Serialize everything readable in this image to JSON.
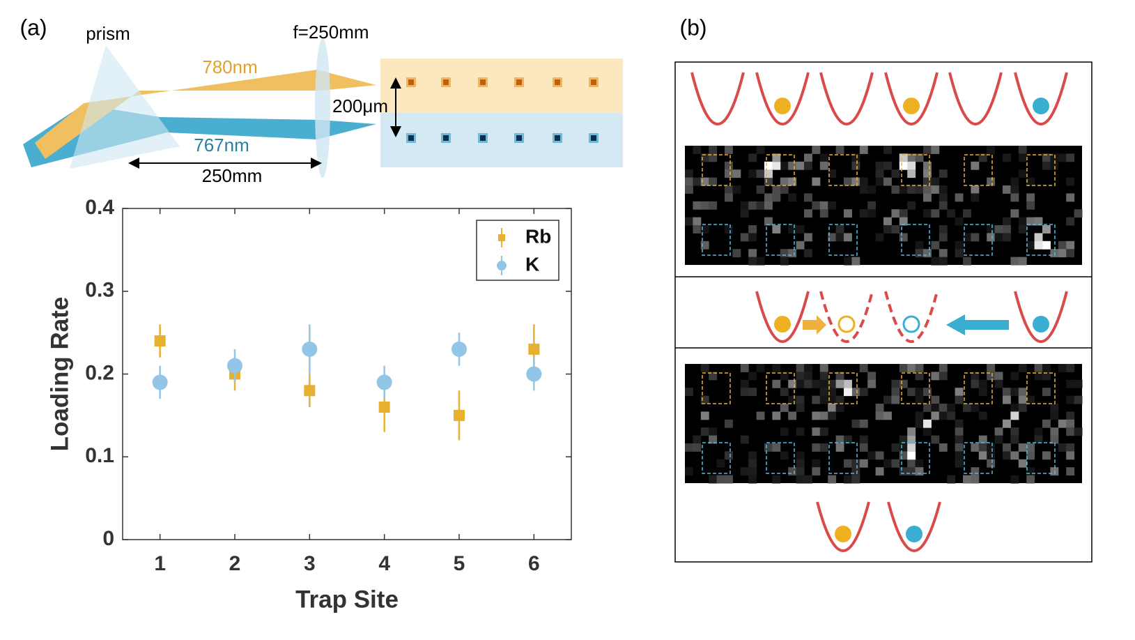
{
  "panel_labels": [
    "(a)",
    "(b)"
  ],
  "diagram": {
    "prism": "prism",
    "lens": "f=250mm",
    "beam_rb": "780nm",
    "beam_k": "767nm",
    "spacing": "200μm",
    "distance": "250mm"
  },
  "chart_data": {
    "type": "scatter",
    "x": [
      1,
      2,
      3,
      4,
      5,
      6
    ],
    "xlabel": "Trap Site",
    "ylabel": "Loading Rate",
    "xlim": [
      0.5,
      6.5
    ],
    "xticks": [
      1,
      2,
      3,
      4,
      5,
      6
    ],
    "ylim": [
      0,
      0.4
    ],
    "yticks": [
      0,
      0.1,
      0.2,
      0.3,
      0.4
    ],
    "legend": "upper right",
    "series": [
      {
        "name": "Rb",
        "color": "#e8b030",
        "marker": "square",
        "values": [
          0.24,
          0.2,
          0.18,
          0.16,
          0.15,
          0.23
        ],
        "errors": [
          0.02,
          0.02,
          0.02,
          0.03,
          0.03,
          0.03
        ]
      },
      {
        "name": "K",
        "color": "#93c5e6",
        "marker": "circle",
        "values": [
          0.19,
          0.21,
          0.23,
          0.19,
          0.23,
          0.2
        ],
        "errors": [
          0.02,
          0.02,
          0.03,
          0.02,
          0.02,
          0.02
        ]
      }
    ]
  }
}
